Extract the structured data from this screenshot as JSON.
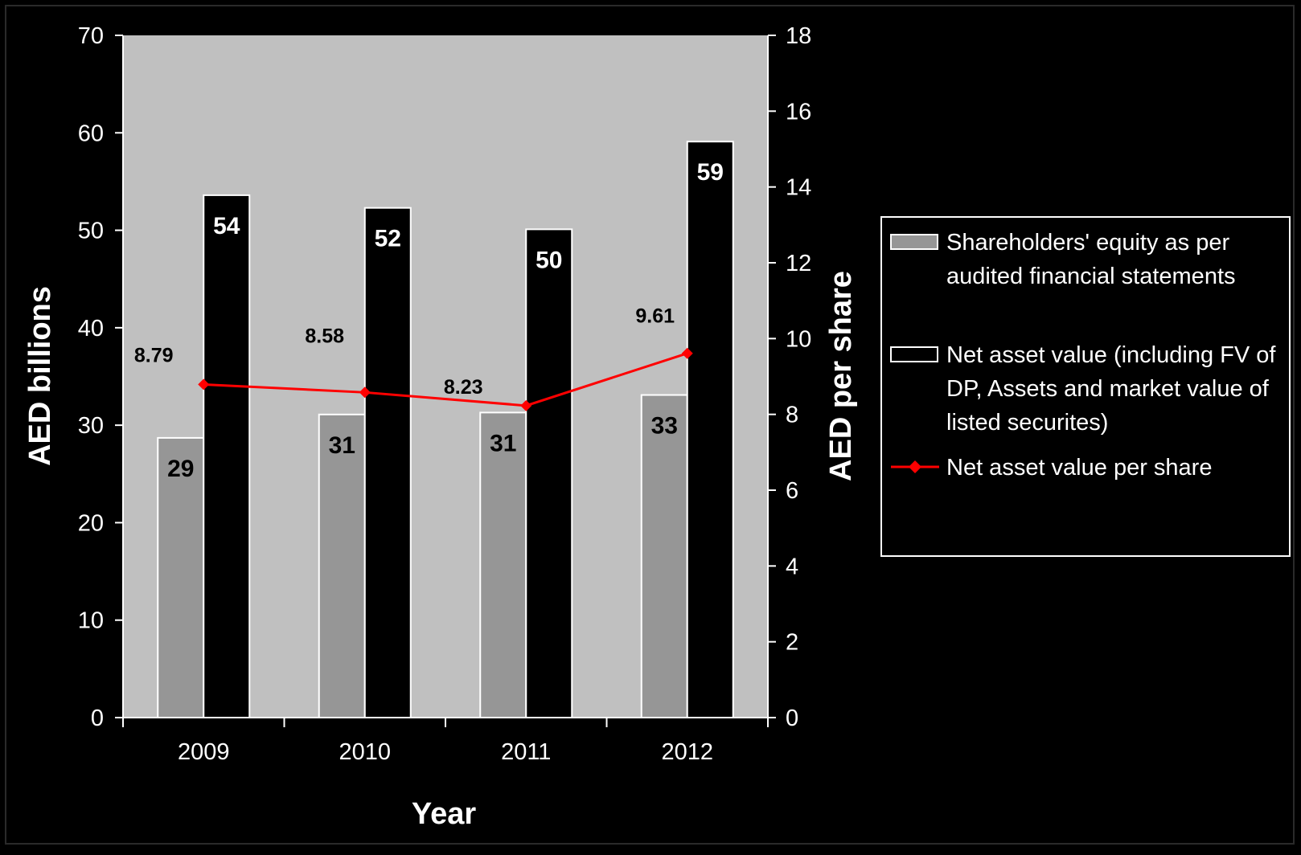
{
  "chart_data": {
    "type": "bar",
    "title": "",
    "categories": [
      "2009",
      "2010",
      "2011",
      "2012"
    ],
    "xlabel": "Year",
    "ylabel": "AED billions",
    "y2label": "AED per share",
    "ylim": [
      0,
      70
    ],
    "y2lim": [
      0,
      18
    ],
    "yticks": [
      "0",
      "10",
      "20",
      "30",
      "40",
      "50",
      "60",
      "70"
    ],
    "y2ticks": [
      "0",
      "2",
      "4",
      "6",
      "8",
      "10",
      "12",
      "14",
      "16",
      "18"
    ],
    "legend_position": "right",
    "series": [
      {
        "name": "Shareholders' equity as per audited financial statements",
        "legend_lines": [
          "Shareholders' equity as per",
          "audited financial statements"
        ],
        "type": "bar",
        "axis": "left",
        "values": [
          28.7,
          31.1,
          31.3,
          33.1
        ],
        "labels": [
          "29",
          "31",
          "31",
          "33"
        ],
        "color": "#969696"
      },
      {
        "name": "Net asset value (including FV of DP, Assets and market value of listed securites)",
        "legend_lines": [
          "Net asset value (including FV of",
          "DP, Assets and market value of",
          "listed securites)"
        ],
        "type": "bar",
        "axis": "left",
        "values": [
          53.6,
          52.3,
          50.1,
          59.1
        ],
        "labels": [
          "54",
          "52",
          "50",
          "59"
        ],
        "color": "#000000"
      },
      {
        "name": "Net asset value per share",
        "legend_lines": [
          "Net asset value per share"
        ],
        "type": "line",
        "axis": "right",
        "values": [
          8.79,
          8.58,
          8.23,
          9.61
        ],
        "labels": [
          "8.79",
          "8.58",
          "8.23",
          "9.61"
        ],
        "color": "#ff0000"
      }
    ],
    "colors": {
      "background": "#000000",
      "plot_area": "#c0c0c0",
      "axis": "#ffffff",
      "line": "#ff0000"
    },
    "grid": false
  }
}
